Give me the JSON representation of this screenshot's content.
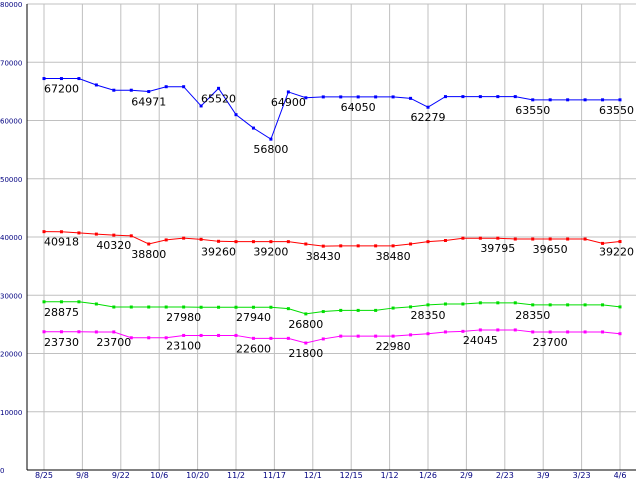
{
  "chart_data": {
    "type": "line",
    "title": "",
    "xlabel": "",
    "ylabel": "",
    "ylim": [
      0,
      80000
    ],
    "yticks": [
      0,
      10000,
      20000,
      30000,
      40000,
      50000,
      60000,
      70000,
      80000
    ],
    "grid": true,
    "legend": "none",
    "x_tick_labels": [
      "8/25",
      "9/8",
      "9/22",
      "10/6",
      "10/20",
      "11/2",
      "11/17",
      "12/1",
      "12/15",
      "1/12",
      "1/26",
      "2/9",
      "2/23",
      "3/9",
      "3/23",
      "4/6"
    ],
    "x_count": 34,
    "series": [
      {
        "color": "#0000ff",
        "values": [
          67200,
          67200,
          67200,
          66100,
          65200,
          65200,
          64971,
          65800,
          65800,
          62500,
          65520,
          61000,
          58700,
          56800,
          64900,
          63900,
          64050,
          64050,
          64050,
          64050,
          64050,
          63800,
          62279,
          64100,
          64100,
          64100,
          64100,
          64100,
          63550,
          63550,
          63550,
          63550,
          63550,
          63550
        ],
        "labels": [
          [
            "0",
            "67200"
          ],
          [
            "6",
            "64971"
          ],
          [
            "10",
            "65520"
          ],
          [
            "13",
            "56800"
          ],
          [
            "14",
            "64900"
          ],
          [
            "18",
            "64050"
          ],
          [
            "22",
            "62279"
          ],
          [
            "28",
            "63550"
          ],
          [
            "33",
            "63550"
          ]
        ]
      },
      {
        "color": "#ff0000",
        "values": [
          40918,
          40900,
          40700,
          40500,
          40320,
          40200,
          38800,
          39500,
          39800,
          39600,
          39260,
          39200,
          39200,
          39200,
          39200,
          38800,
          38430,
          38480,
          38480,
          38480,
          38480,
          38800,
          39200,
          39400,
          39795,
          39795,
          39795,
          39650,
          39650,
          39650,
          39650,
          39650,
          38900,
          39220
        ],
        "labels": [
          [
            "0",
            "40918"
          ],
          [
            "4",
            "40320"
          ],
          [
            "6",
            "38800"
          ],
          [
            "10",
            "39260"
          ],
          [
            "13",
            "39200"
          ],
          [
            "16",
            "38430"
          ],
          [
            "20",
            "38480"
          ],
          [
            "26",
            "39795"
          ],
          [
            "29",
            "39650"
          ],
          [
            "33",
            "39220"
          ]
        ]
      },
      {
        "color": "#00dd00",
        "values": [
          28875,
          28875,
          28875,
          28500,
          27980,
          27980,
          27980,
          27980,
          27980,
          27940,
          27940,
          27940,
          27940,
          27940,
          27700,
          26800,
          27200,
          27400,
          27400,
          27400,
          27800,
          28000,
          28350,
          28500,
          28500,
          28700,
          28700,
          28700,
          28350,
          28350,
          28350,
          28350,
          28350,
          28000
        ],
        "labels": [
          [
            "0",
            "28875"
          ],
          [
            "8",
            "27980"
          ],
          [
            "12",
            "27940"
          ],
          [
            "15",
            "26800"
          ],
          [
            "22",
            "28350"
          ],
          [
            "28",
            "28350"
          ]
        ]
      },
      {
        "color": "#ff00ff",
        "values": [
          23730,
          23730,
          23730,
          23700,
          23700,
          22700,
          22700,
          22700,
          23100,
          23100,
          23100,
          23100,
          22600,
          22600,
          22600,
          21800,
          22500,
          22980,
          22980,
          22980,
          22980,
          23200,
          23400,
          23700,
          23800,
          24045,
          24045,
          24045,
          23700,
          23700,
          23700,
          23700,
          23700,
          23400
        ],
        "labels": [
          [
            "0",
            "23730"
          ],
          [
            "4",
            "23700"
          ],
          [
            "8",
            "23100"
          ],
          [
            "12",
            "22600"
          ],
          [
            "15",
            "21800"
          ],
          [
            "20",
            "22980"
          ],
          [
            "25",
            "24045"
          ],
          [
            "29",
            "23700"
          ]
        ]
      }
    ]
  }
}
